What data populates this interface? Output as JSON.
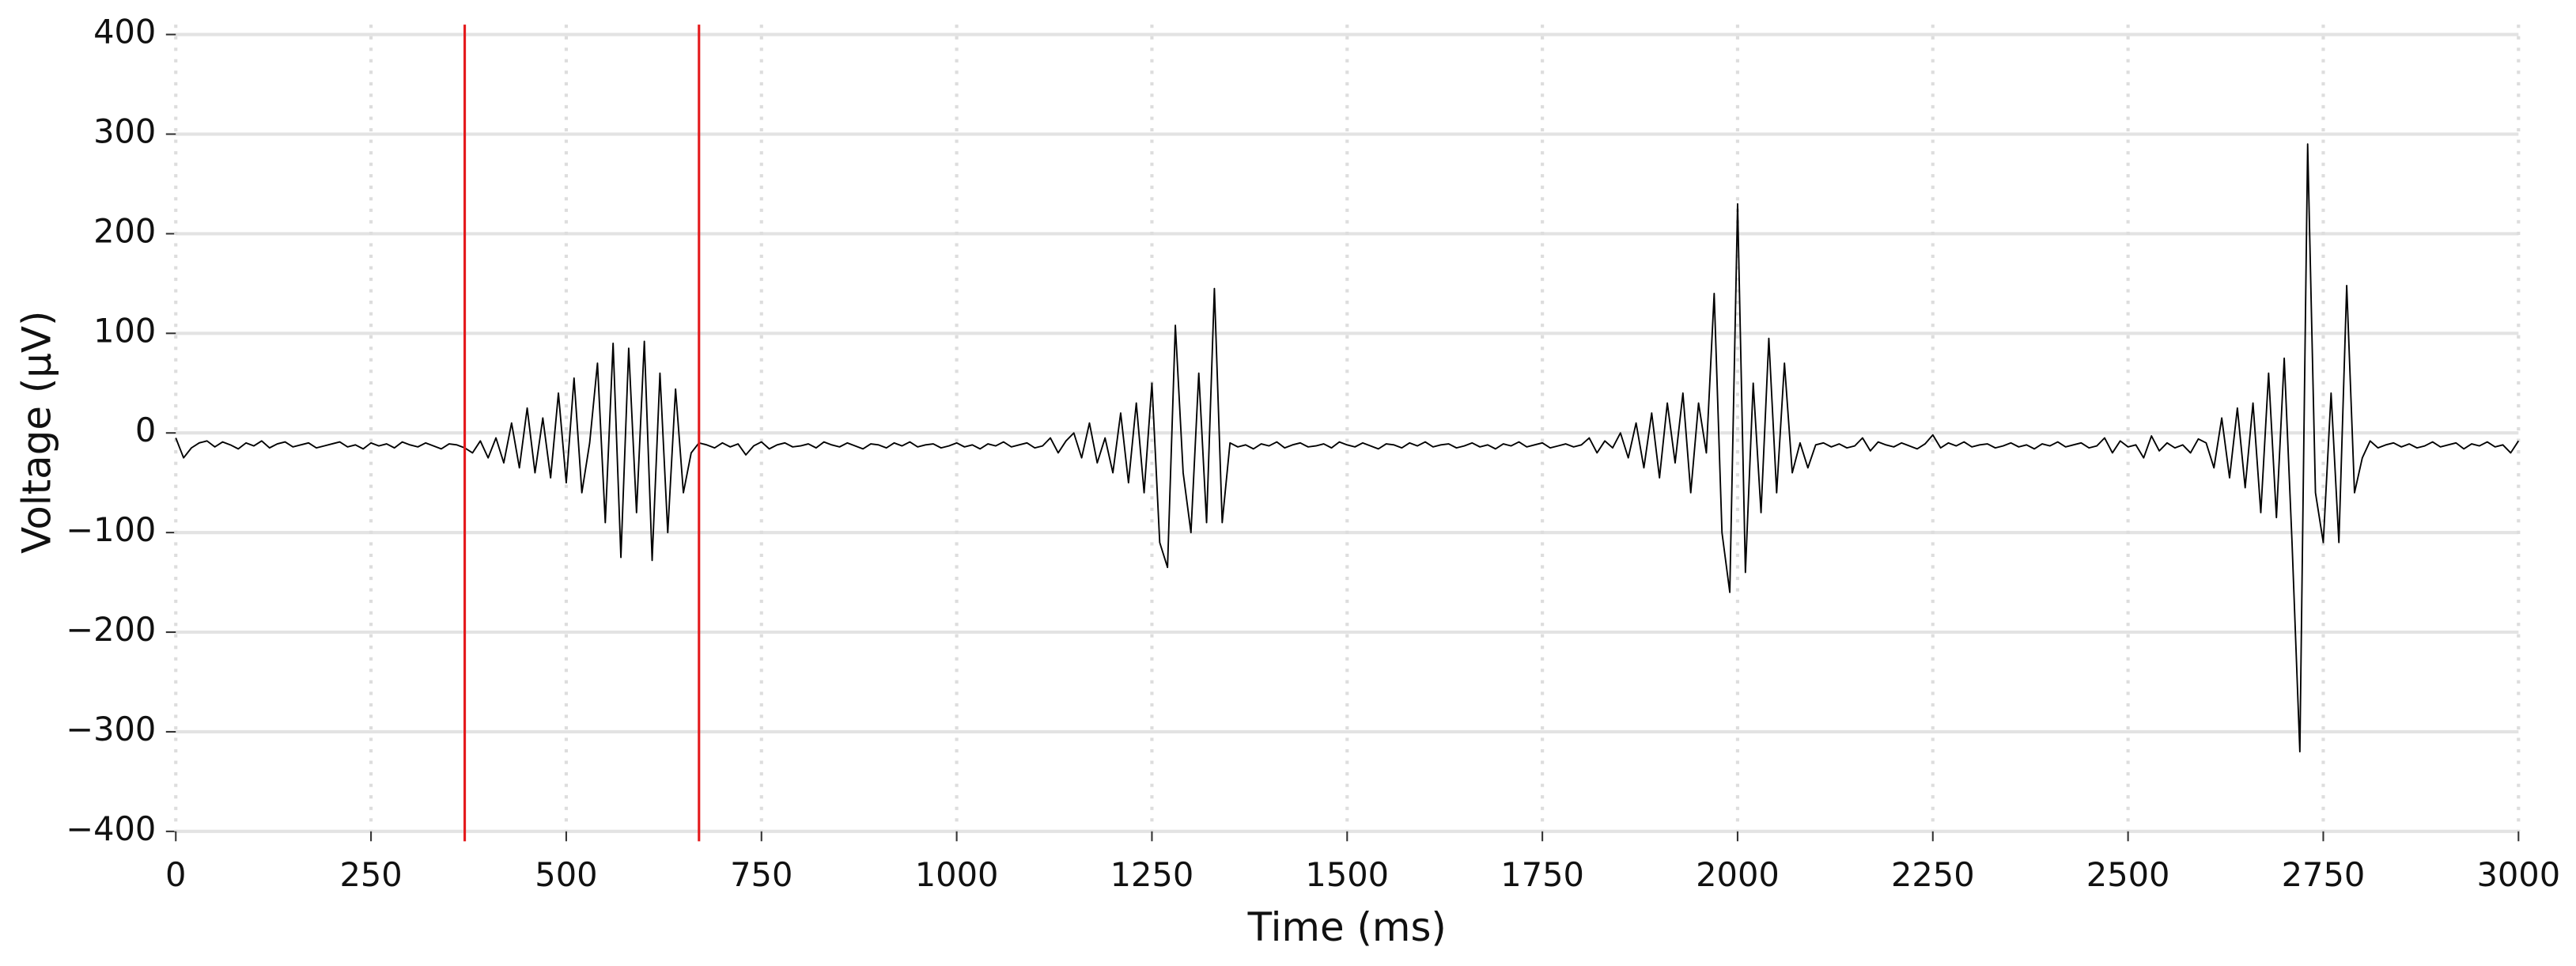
{
  "chart_data": {
    "type": "line",
    "xlabel": "Time (ms)",
    "ylabel": "Voltage (µV)",
    "x": [
      0,
      10,
      20,
      30,
      40,
      50,
      60,
      70,
      80,
      90,
      100,
      110,
      120,
      130,
      140,
      150,
      160,
      170,
      180,
      190,
      200,
      210,
      220,
      230,
      240,
      250,
      260,
      270,
      280,
      290,
      300,
      310,
      320,
      330,
      340,
      350,
      360,
      370,
      380,
      390,
      400,
      410,
      420,
      430,
      440,
      450,
      460,
      470,
      480,
      490,
      500,
      510,
      520,
      530,
      540,
      550,
      560,
      570,
      580,
      590,
      600,
      610,
      620,
      630,
      640,
      650,
      660,
      670,
      680,
      690,
      700,
      710,
      720,
      730,
      740,
      750,
      760,
      770,
      780,
      790,
      800,
      810,
      820,
      830,
      840,
      850,
      860,
      870,
      880,
      890,
      900,
      910,
      920,
      930,
      940,
      950,
      960,
      970,
      980,
      990,
      1000,
      1010,
      1020,
      1030,
      1040,
      1050,
      1060,
      1070,
      1080,
      1090,
      1100,
      1110,
      1120,
      1130,
      1140,
      1150,
      1160,
      1170,
      1180,
      1190,
      1200,
      1210,
      1220,
      1230,
      1240,
      1250,
      1260,
      1270,
      1280,
      1290,
      1300,
      1310,
      1320,
      1330,
      1340,
      1350,
      1360,
      1370,
      1380,
      1390,
      1400,
      1410,
      1420,
      1430,
      1440,
      1450,
      1460,
      1470,
      1480,
      1490,
      1500,
      1510,
      1520,
      1530,
      1540,
      1550,
      1560,
      1570,
      1580,
      1590,
      1600,
      1610,
      1620,
      1630,
      1640,
      1650,
      1660,
      1670,
      1680,
      1690,
      1700,
      1710,
      1720,
      1730,
      1740,
      1750,
      1760,
      1770,
      1780,
      1790,
      1800,
      1810,
      1820,
      1830,
      1840,
      1850,
      1860,
      1870,
      1880,
      1890,
      1900,
      1910,
      1920,
      1930,
      1940,
      1950,
      1960,
      1970,
      1980,
      1990,
      2000,
      2010,
      2020,
      2030,
      2040,
      2050,
      2060,
      2070,
      2080,
      2090,
      2100,
      2110,
      2120,
      2130,
      2140,
      2150,
      2160,
      2170,
      2180,
      2190,
      2200,
      2210,
      2220,
      2230,
      2240,
      2250,
      2260,
      2270,
      2280,
      2290,
      2300,
      2310,
      2320,
      2330,
      2340,
      2350,
      2360,
      2370,
      2380,
      2390,
      2400,
      2410,
      2420,
      2430,
      2440,
      2450,
      2460,
      2470,
      2480,
      2490,
      2500,
      2510,
      2520,
      2530,
      2540,
      2550,
      2560,
      2570,
      2580,
      2590,
      2600,
      2610,
      2620,
      2630,
      2640,
      2650,
      2660,
      2670,
      2680,
      2690,
      2700,
      2710,
      2720,
      2730,
      2740,
      2750,
      2760,
      2770,
      2780,
      2790,
      2800,
      2810,
      2820,
      2830,
      2840,
      2850,
      2860,
      2870,
      2880,
      2890,
      2900,
      2910,
      2920,
      2930,
      2940,
      2950,
      2960,
      2970,
      2980,
      2990,
      3000
    ],
    "series": [
      {
        "color": "#000000",
        "values": [
          -5,
          -25,
          -15,
          -10,
          -8,
          -14,
          -9,
          -12,
          -16,
          -10,
          -13,
          -8,
          -15,
          -11,
          -9,
          -14,
          -12,
          -10,
          -15,
          -13,
          -11,
          -9,
          -14,
          -12,
          -16,
          -10,
          -13,
          -11,
          -15,
          -9,
          -12,
          -14,
          -10,
          -13,
          -16,
          -11,
          -12,
          -15,
          -20,
          -8,
          -25,
          -5,
          -30,
          10,
          -35,
          25,
          -40,
          15,
          -45,
          40,
          -50,
          55,
          -60,
          -10,
          70,
          -90,
          90,
          -125,
          85,
          -80,
          92,
          -128,
          60,
          -100,
          44,
          -60,
          -20,
          -10,
          -12,
          -15,
          -10,
          -14,
          -11,
          -22,
          -13,
          -9,
          -16,
          -12,
          -10,
          -14,
          -13,
          -11,
          -15,
          -9,
          -12,
          -14,
          -10,
          -13,
          -16,
          -11,
          -12,
          -15,
          -10,
          -13,
          -9,
          -14,
          -12,
          -11,
          -15,
          -13,
          -10,
          -14,
          -12,
          -16,
          -11,
          -13,
          -9,
          -14,
          -12,
          -10,
          -15,
          -13,
          -5,
          -20,
          -8,
          0,
          -25,
          10,
          -30,
          -5,
          -40,
          20,
          -50,
          30,
          -60,
          50,
          -110,
          -135,
          108,
          -40,
          -100,
          60,
          -90,
          145,
          -90,
          -10,
          -14,
          -12,
          -16,
          -11,
          -13,
          -9,
          -15,
          -12,
          -10,
          -14,
          -13,
          -11,
          -15,
          -9,
          -12,
          -14,
          -10,
          -13,
          -16,
          -11,
          -12,
          -15,
          -10,
          -13,
          -9,
          -14,
          -12,
          -11,
          -15,
          -13,
          -10,
          -14,
          -12,
          -16,
          -11,
          -13,
          -9,
          -14,
          -12,
          -10,
          -15,
          -13,
          -11,
          -14,
          -12,
          -5,
          -20,
          -8,
          -15,
          0,
          -25,
          10,
          -35,
          20,
          -45,
          30,
          -30,
          40,
          -60,
          30,
          -20,
          140,
          -100,
          -160,
          230,
          -140,
          50,
          -80,
          95,
          -60,
          70,
          -40,
          -10,
          -35,
          -12,
          -10,
          -14,
          -11,
          -15,
          -13,
          -5,
          -18,
          -9,
          -12,
          -14,
          -10,
          -13,
          -16,
          -11,
          -2,
          -15,
          -10,
          -13,
          -9,
          -14,
          -12,
          -11,
          -15,
          -13,
          -10,
          -14,
          -12,
          -16,
          -11,
          -13,
          -9,
          -14,
          -12,
          -10,
          -15,
          -13,
          -5,
          -20,
          -8,
          -14,
          -12,
          -25,
          -3,
          -18,
          -10,
          -15,
          -12,
          -20,
          -6,
          -10,
          -35,
          15,
          -45,
          25,
          -55,
          30,
          -80,
          60,
          -85,
          75,
          -110,
          -320,
          290,
          -60,
          -110,
          40,
          -110,
          148,
          -60,
          -25,
          -8,
          -15,
          -12,
          -10,
          -14,
          -11,
          -15,
          -13,
          -9,
          -14,
          -12,
          -10,
          -16,
          -11,
          -13,
          -9,
          -14,
          -12,
          -20,
          -8
        ]
      }
    ],
    "markers": [
      370,
      670
    ],
    "marker_color": "#e41a1c",
    "xlim": [
      0,
      3000
    ],
    "xticks": [
      0,
      250,
      500,
      750,
      1000,
      1250,
      1500,
      1750,
      2000,
      2250,
      2500,
      2750,
      3000
    ],
    "ylim": [
      -400,
      400
    ],
    "yticks": [
      {
        "value": -400,
        "label": "−400"
      },
      {
        "value": -300,
        "label": "−300"
      },
      {
        "value": -200,
        "label": "−200"
      },
      {
        "value": -100,
        "label": "−100"
      },
      0,
      100,
      200,
      300,
      400
    ],
    "grid": true
  }
}
